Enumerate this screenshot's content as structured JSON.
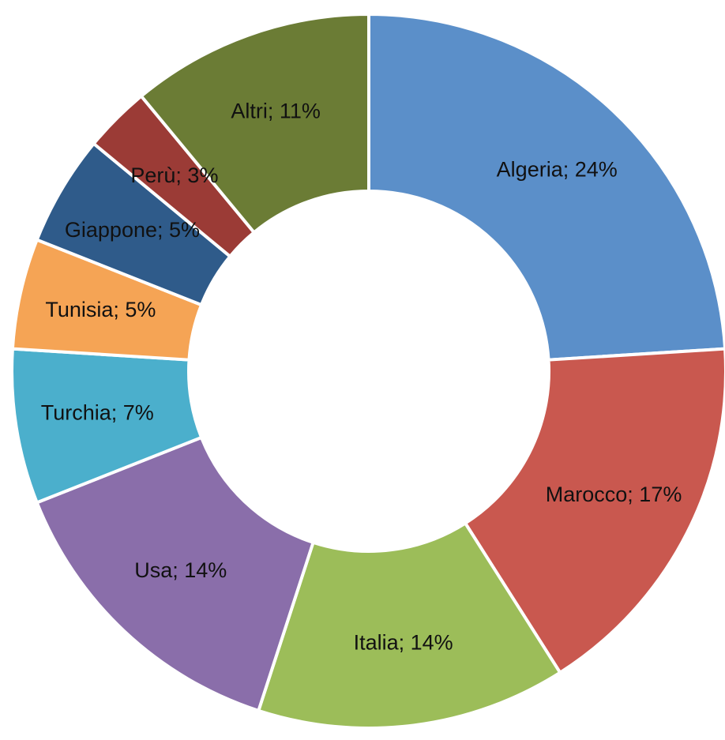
{
  "chart_data": {
    "type": "donut",
    "values": [
      24,
      17,
      14,
      14,
      7,
      5,
      5,
      3,
      11
    ],
    "value_labels": [
      "Algeria; 24%",
      "Marocco; 17%",
      "Italia; 14%",
      "Usa; 14%",
      "Turchia; 7%",
      "Tunisia; 5%",
      "Giappone; 5%",
      "Perù; 3%",
      "Altri; 11%"
    ],
    "colors": [
      "#5b8fc9",
      "#c9584f",
      "#9cbd59",
      "#8a6eaa",
      "#4bafcc",
      "#f5a455",
      "#2f5b8a",
      "#9b3b36",
      "#6b7c35"
    ]
  }
}
